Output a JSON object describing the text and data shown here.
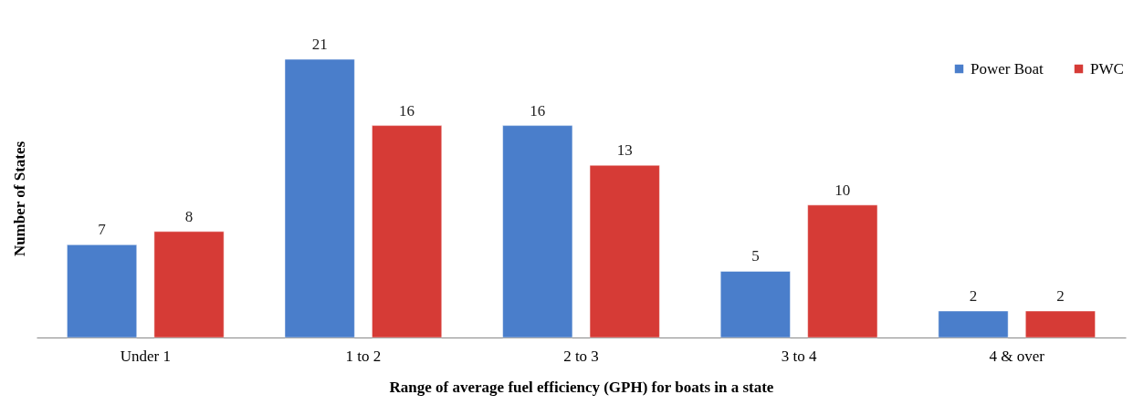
{
  "chart_data": {
    "type": "bar",
    "xlabel": "Range of average fuel efficiency (GPH) for boats in a state",
    "ylabel": "Number of States",
    "categories": [
      "Under 1",
      "1 to 2",
      "2 to 3",
      "3 to 4",
      "4 & over"
    ],
    "series": [
      {
        "name": "Power Boat",
        "color": "#4a7ecb",
        "values": [
          7,
          21,
          16,
          5,
          2
        ]
      },
      {
        "name": "PWC",
        "color": "#d63b36",
        "values": [
          8,
          16,
          13,
          10,
          2
        ]
      }
    ],
    "data_labels": true,
    "legend": "top right",
    "grid": false,
    "tick_labels": "x"
  }
}
